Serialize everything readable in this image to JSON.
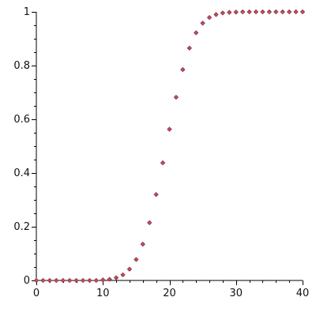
{
  "chart_data": {
    "type": "scatter",
    "title": "",
    "xlabel": "",
    "ylabel": "",
    "xlim": [
      0,
      40
    ],
    "ylim": [
      0,
      1
    ],
    "grid": false,
    "x_ticks": [
      "0",
      "10",
      "20",
      "30",
      "40"
    ],
    "y_ticks": [
      "0",
      "0.2",
      "0.4",
      "0.6",
      "0.8",
      "1"
    ],
    "marker_color": "#c0506a",
    "marker_edge_color": "#8a2f3c",
    "marker_shape": "diamond",
    "series": [
      {
        "x": [
          0,
          1,
          2,
          3,
          4,
          5,
          6,
          7,
          8,
          9,
          10,
          11,
          12,
          13,
          14,
          15,
          16,
          17,
          18,
          19,
          20,
          21,
          22,
          23,
          24,
          25,
          26,
          27,
          28,
          29,
          30,
          31,
          32,
          33,
          34,
          35,
          36,
          37,
          38,
          39,
          40
        ],
        "values": [
          0,
          0,
          0,
          0,
          0,
          0,
          0,
          0,
          0,
          0,
          0.002,
          0.004,
          0.01,
          0.021,
          0.042,
          0.078,
          0.135,
          0.215,
          0.32,
          0.438,
          0.563,
          0.682,
          0.785,
          0.865,
          0.922,
          0.958,
          0.979,
          0.99,
          0.996,
          0.998,
          0.999,
          1,
          1,
          1,
          1,
          1,
          1,
          1,
          1,
          1,
          1
        ]
      }
    ]
  }
}
